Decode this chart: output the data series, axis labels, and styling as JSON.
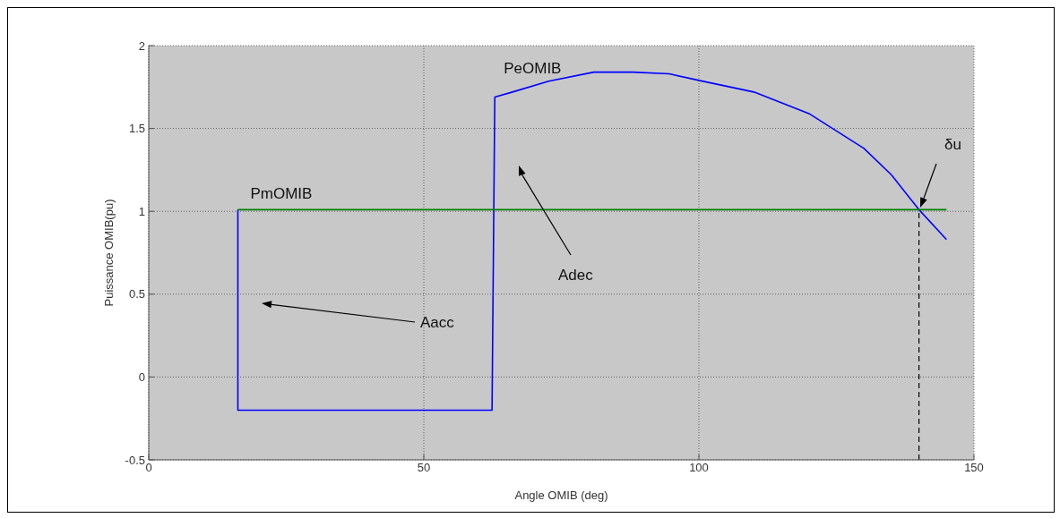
{
  "chart_data": {
    "type": "line",
    "xlabel": "Angle OMIB (deg)",
    "ylabel": "Puissance OMIB(pu)",
    "xlim": [
      0,
      150
    ],
    "xticks": [
      0,
      50,
      100,
      150
    ],
    "ylim": [
      -0.5,
      2
    ],
    "yticks": [
      -0.5,
      0,
      0.5,
      1,
      1.5,
      2
    ],
    "grid": true,
    "marker": "none",
    "series": [
      {
        "name": "PeOMIB",
        "color": "#0000ff",
        "x": [
          16.2,
          16.2,
          62.4,
          62.9,
          66.1,
          72.7,
          80.9,
          88,
          94.6,
          100,
          110,
          120,
          130,
          135,
          140,
          145
        ],
        "values": [
          1.01,
          -0.2,
          -0.2,
          1.69,
          1.72,
          1.785,
          1.84,
          1.84,
          1.83,
          1.79,
          1.72,
          1.59,
          1.38,
          1.22,
          1.01,
          0.83
        ]
      },
      {
        "name": "PmOMIB",
        "color": "#008000",
        "x": [
          16.2,
          145
        ],
        "values": [
          1.01,
          1.01
        ]
      },
      {
        "color": "#000000",
        "line_style": "dashed",
        "x": [
          140,
          140
        ],
        "values": [
          -0.5,
          1.01
        ]
      }
    ],
    "annotations": [
      "Aacc",
      "Adec",
      "δu"
    ]
  }
}
